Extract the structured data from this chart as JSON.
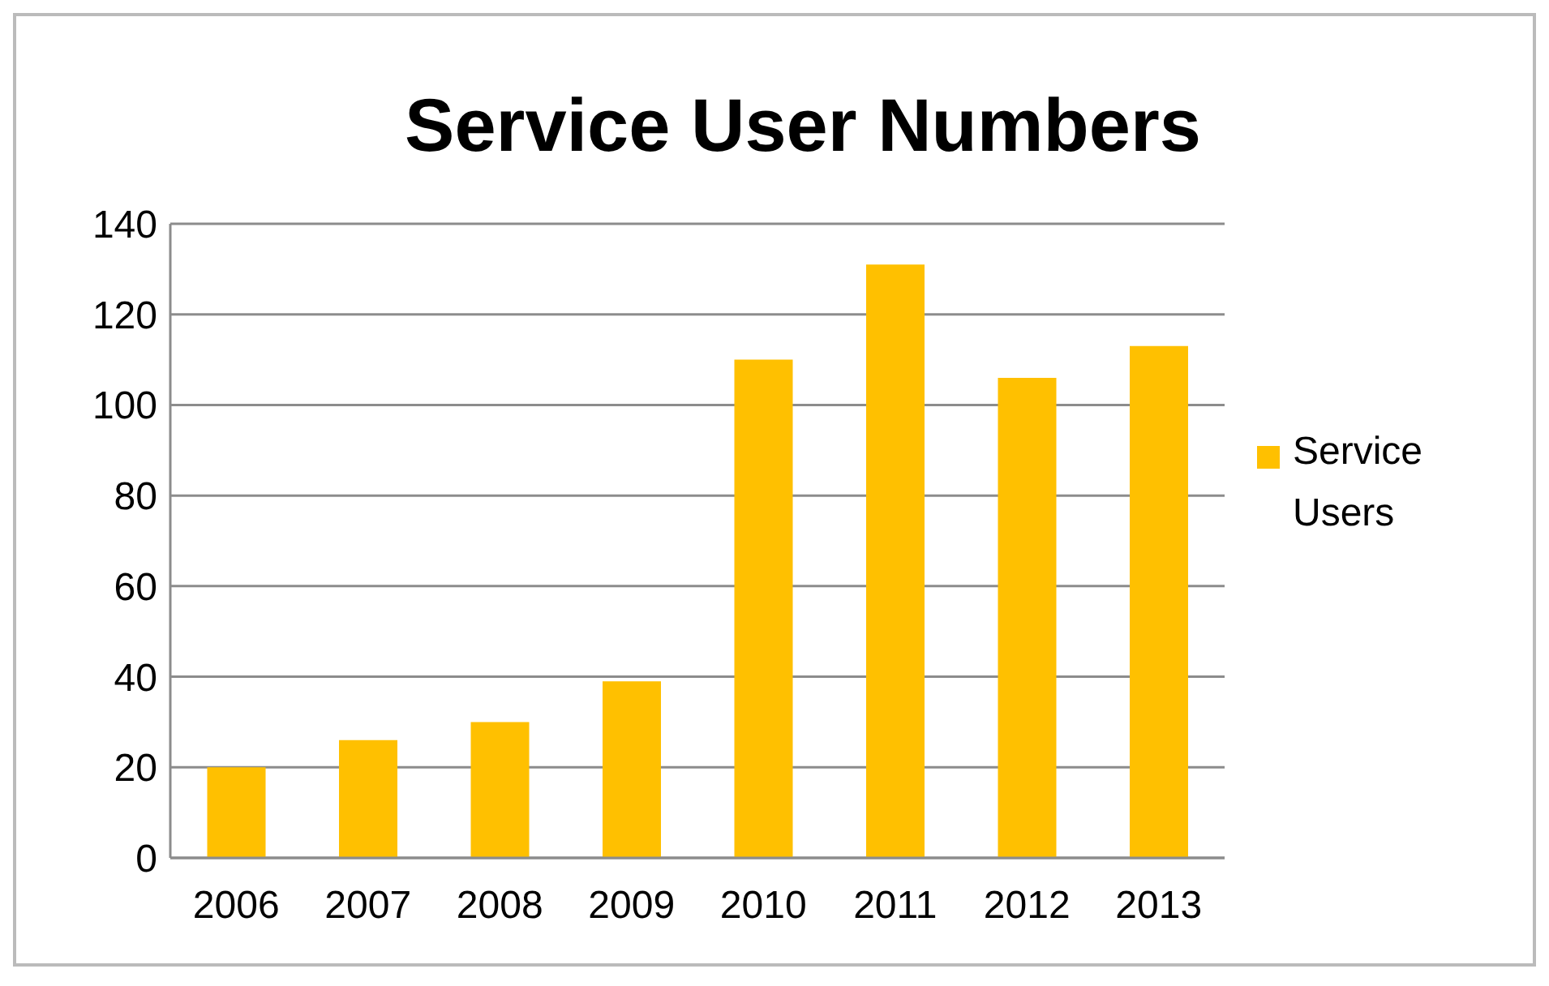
{
  "chart_data": {
    "type": "bar",
    "title": "Service User Numbers",
    "categories": [
      "2006",
      "2007",
      "2008",
      "2009",
      "2010",
      "2011",
      "2012",
      "2013"
    ],
    "series": [
      {
        "name": "Service Users",
        "color": "#ffc000",
        "values": [
          20,
          26,
          30,
          39,
          110,
          131,
          106,
          113
        ]
      }
    ],
    "ylim": [
      0,
      140
    ],
    "yticks": [
      0,
      20,
      40,
      60,
      80,
      100,
      120,
      140
    ],
    "grid": "y",
    "legend": "right"
  }
}
